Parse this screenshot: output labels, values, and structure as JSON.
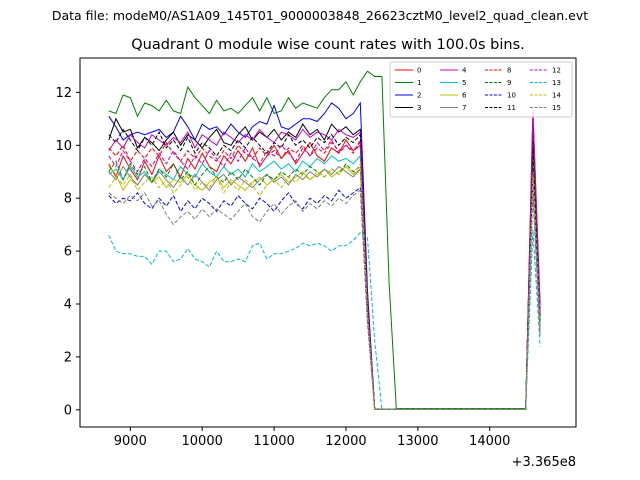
{
  "figure": {
    "suptitle": "Data file: modeM0/AS1A09_145T01_9000003848_26623cztM0_level2_quad_clean.evt",
    "title": "Quadrant 0 module wise count rates with 100.0s bins.",
    "offset_label": "+3.365e8"
  },
  "chart_data": {
    "type": "line",
    "title": "Quadrant 0 module wise count rates with 100.0s bins.",
    "xlabel": "",
    "ylabel": "",
    "x_offset": 336500000,
    "xlim": [
      8300,
      15200
    ],
    "ylim": [
      -0.65,
      13.3
    ],
    "xticks": [
      9000,
      10000,
      11000,
      12000,
      13000,
      14000
    ],
    "xtick_labels": [
      "9000",
      "10000",
      "11000",
      "12000",
      "13000",
      "14000"
    ],
    "yticks": [
      0,
      2,
      4,
      6,
      8,
      10,
      12
    ],
    "ytick_labels": [
      "0",
      "2",
      "4",
      "6",
      "8",
      "10",
      "12"
    ],
    "legend_position": "upper-right",
    "legend_columns": 4,
    "x": [
      8700,
      8800,
      8900,
      9000,
      9100,
      9200,
      9300,
      9400,
      9500,
      9600,
      9700,
      9800,
      9900,
      10000,
      10100,
      10200,
      10300,
      10400,
      10500,
      10600,
      10700,
      10800,
      10900,
      11000,
      11100,
      11200,
      11300,
      11400,
      11500,
      11600,
      11700,
      11800,
      11900,
      12000,
      12100,
      12200,
      12300,
      12400,
      12500,
      12600,
      12700,
      12800,
      12900,
      13000,
      13100,
      13200,
      13300,
      13400,
      13500,
      13600,
      13700,
      13800,
      13900,
      14000,
      14100,
      14200,
      14300,
      14400,
      14500,
      14600,
      14700
    ],
    "series": [
      {
        "name": "0",
        "color": "#ff0000",
        "dash": "solid",
        "values": [
          9.3,
          8.8,
          9.6,
          9.1,
          8.7,
          9.4,
          8.9,
          9.6,
          9.0,
          9.3,
          8.8,
          9.5,
          9.1,
          9.7,
          9.2,
          9.0,
          9.6,
          9.3,
          9.8,
          9.4,
          9.9,
          9.2,
          9.6,
          10.0,
          9.5,
          9.8,
          9.3,
          9.7,
          10.1,
          9.6,
          9.4,
          9.9,
          9.7,
          10.2,
          9.8,
          10.0,
          4.0,
          0.02,
          0.02,
          0.02,
          0.02,
          0.02,
          0.02,
          0.02,
          0.02,
          0.02,
          0.02,
          0.02,
          0.02,
          0.02,
          0.02,
          0.02,
          0.02,
          0.02,
          0.02,
          0.02,
          0.02,
          0.02,
          0.02,
          10.2,
          3.5
        ]
      },
      {
        "name": "1",
        "color": "#008000",
        "dash": "solid",
        "values": [
          11.3,
          11.2,
          11.9,
          11.8,
          11.1,
          11.6,
          11.5,
          11.3,
          11.7,
          11.3,
          11.2,
          12.2,
          11.8,
          11.5,
          11.2,
          11.7,
          11.3,
          11.4,
          11.2,
          11.5,
          11.8,
          11.3,
          11.8,
          11.2,
          11.3,
          11.8,
          11.4,
          11.6,
          11.5,
          11.4,
          11.8,
          12.1,
          12.1,
          12.4,
          11.9,
          12.4,
          12.8,
          12.6,
          12.6,
          4.8,
          0.05,
          0.05,
          0.05,
          0.05,
          0.05,
          0.05,
          0.05,
          0.05,
          0.05,
          0.05,
          0.05,
          0.05,
          0.05,
          0.05,
          0.05,
          0.05,
          0.05,
          0.05,
          0.05,
          11.3,
          4.0
        ]
      },
      {
        "name": "2",
        "color": "#0000ff",
        "dash": "solid",
        "values": [
          11.1,
          10.7,
          10.2,
          10.4,
          10.5,
          10.4,
          10.5,
          10.6,
          10.3,
          10.5,
          11.1,
          10.7,
          10.2,
          10.8,
          10.6,
          10.7,
          10.4,
          10.8,
          10.5,
          10.3,
          10.7,
          10.9,
          10.8,
          11.5,
          10.7,
          10.6,
          10.8,
          11.0,
          11.0,
          10.9,
          11.2,
          11.6,
          11.4,
          11.0,
          11.2,
          11.6,
          4.5,
          0.03,
          0.03,
          0.03,
          0.03,
          0.03,
          0.03,
          0.03,
          0.03,
          0.03,
          0.03,
          0.03,
          0.03,
          0.03,
          0.03,
          0.03,
          0.03,
          0.03,
          0.03,
          0.03,
          0.03,
          0.03,
          0.03,
          10.8,
          3.8
        ]
      },
      {
        "name": "3",
        "color": "#000000",
        "dash": "solid",
        "values": [
          10.2,
          11.0,
          10.5,
          10.6,
          9.9,
          10.3,
          10.1,
          9.8,
          10.2,
          10.5,
          10.0,
          10.4,
          10.2,
          9.9,
          10.3,
          10.6,
          10.1,
          10.0,
          10.4,
          10.7,
          10.2,
          10.5,
          10.3,
          10.6,
          10.2,
          10.5,
          10.3,
          10.8,
          10.4,
          10.6,
          10.2,
          10.8,
          10.5,
          10.7,
          10.4,
          10.6,
          4.2,
          0.02,
          0.02,
          0.02,
          0.02,
          0.02,
          0.02,
          0.02,
          0.02,
          0.02,
          0.02,
          0.02,
          0.02,
          0.02,
          0.02,
          0.02,
          0.02,
          0.02,
          0.02,
          0.02,
          0.02,
          0.02,
          0.02,
          10.6,
          3.6
        ]
      },
      {
        "name": "4",
        "color": "#bf00bf",
        "dash": "solid",
        "values": [
          9.8,
          10.2,
          9.9,
          10.4,
          10.1,
          9.9,
          10.4,
          10.2,
          10.0,
          10.3,
          10.1,
          10.5,
          9.9,
          10.4,
          10.2,
          10.0,
          10.5,
          10.3,
          10.1,
          10.4,
          10.2,
          10.6,
          10.3,
          10.1,
          10.5,
          10.4,
          10.2,
          10.6,
          10.3,
          10.5,
          10.4,
          10.2,
          10.6,
          10.4,
          10.3,
          10.5,
          4.1,
          0.02,
          0.02,
          0.02,
          0.02,
          0.02,
          0.02,
          0.02,
          0.02,
          0.02,
          0.02,
          0.02,
          0.02,
          0.02,
          0.02,
          0.02,
          0.02,
          0.02,
          0.02,
          0.02,
          0.02,
          0.02,
          0.02,
          11.3,
          3.9
        ]
      },
      {
        "name": "5",
        "color": "#00bfbf",
        "dash": "solid",
        "values": [
          8.9,
          9.1,
          8.7,
          9.2,
          8.8,
          9.0,
          8.6,
          9.1,
          8.9,
          8.7,
          9.2,
          8.9,
          8.8,
          9.3,
          9.0,
          8.8,
          9.2,
          8.9,
          9.1,
          8.8,
          9.3,
          9.0,
          9.2,
          9.4,
          9.1,
          9.3,
          9.0,
          9.4,
          9.2,
          9.5,
          9.3,
          9.6,
          9.4,
          9.5,
          9.3,
          9.6,
          3.8,
          0.02,
          0.02,
          0.02,
          0.02,
          0.02,
          0.02,
          0.02,
          0.02,
          0.02,
          0.02,
          0.02,
          0.02,
          0.02,
          0.02,
          0.02,
          0.02,
          0.02,
          0.02,
          0.02,
          0.02,
          0.02,
          0.02,
          9.7,
          3.2
        ]
      },
      {
        "name": "6",
        "color": "#bfbf00",
        "dash": "solid",
        "values": [
          9.2,
          8.9,
          8.3,
          8.7,
          8.5,
          8.9,
          8.6,
          8.8,
          8.4,
          8.7,
          8.6,
          8.9,
          8.5,
          8.3,
          8.6,
          8.8,
          8.4,
          8.7,
          8.5,
          8.3,
          8.6,
          8.8,
          8.5,
          8.7,
          8.9,
          8.6,
          8.8,
          9.0,
          8.7,
          8.9,
          9.1,
          8.8,
          9.0,
          9.2,
          8.9,
          9.1,
          3.7,
          0.02,
          0.02,
          0.02,
          0.02,
          0.02,
          0.02,
          0.02,
          0.02,
          0.02,
          0.02,
          0.02,
          0.02,
          0.02,
          0.02,
          0.02,
          0.02,
          0.02,
          0.02,
          0.02,
          0.02,
          0.02,
          0.02,
          9.4,
          3.0
        ]
      },
      {
        "name": "7",
        "color": "#808080",
        "dash": "solid",
        "values": [
          9.0,
          8.7,
          9.2,
          8.8,
          8.5,
          8.9,
          8.6,
          9.0,
          8.7,
          8.4,
          8.8,
          8.5,
          8.9,
          8.6,
          8.3,
          8.7,
          8.9,
          8.5,
          8.8,
          8.6,
          8.4,
          8.7,
          8.9,
          8.6,
          8.8,
          8.5,
          8.9,
          8.7,
          9.0,
          8.8,
          9.1,
          8.9,
          9.2,
          9.0,
          8.8,
          9.1,
          3.6,
          0.02,
          0.02,
          0.02,
          0.02,
          0.02,
          0.02,
          0.02,
          0.02,
          0.02,
          0.02,
          0.02,
          0.02,
          0.02,
          0.02,
          0.02,
          0.02,
          0.02,
          0.02,
          0.02,
          0.02,
          0.02,
          0.02,
          9.2,
          3.1
        ]
      },
      {
        "name": "8",
        "color": "#ff0000",
        "dash": "dashed",
        "values": [
          9.9,
          9.6,
          10.0,
          9.4,
          9.8,
          9.5,
          9.9,
          9.6,
          10.1,
          9.7,
          9.4,
          9.8,
          9.5,
          9.9,
          9.6,
          9.4,
          9.8,
          9.5,
          10.0,
          9.7,
          9.5,
          9.9,
          9.6,
          9.8,
          9.5,
          9.9,
          9.7,
          10.0,
          9.6,
          9.9,
          9.7,
          10.1,
          9.8,
          10.0,
          9.7,
          10.2,
          4.1,
          0.02,
          0.02,
          0.02,
          0.02,
          0.02,
          0.02,
          0.02,
          0.02,
          0.02,
          0.02,
          0.02,
          0.02,
          0.02,
          0.02,
          0.02,
          0.02,
          0.02,
          0.02,
          0.02,
          0.02,
          0.02,
          0.02,
          9.8,
          3.4
        ]
      },
      {
        "name": "9",
        "color": "#008000",
        "dash": "dashed",
        "values": [
          9.0,
          9.4,
          8.7,
          9.3,
          8.9,
          9.2,
          8.6,
          9.1,
          8.8,
          9.3,
          8.7,
          9.0,
          8.5,
          8.9,
          9.2,
          8.8,
          8.6,
          9.0,
          8.7,
          9.1,
          8.8,
          8.5,
          8.9,
          8.7,
          9.0,
          8.8,
          9.1,
          8.9,
          9.2,
          9.0,
          8.8,
          9.1,
          8.9,
          9.3,
          9.0,
          9.2,
          3.7,
          0.02,
          0.02,
          0.02,
          0.02,
          0.02,
          0.02,
          0.02,
          0.02,
          0.02,
          0.02,
          0.02,
          0.02,
          0.02,
          0.02,
          0.02,
          0.02,
          0.02,
          0.02,
          0.02,
          0.02,
          0.02,
          0.02,
          9.5,
          3.3
        ]
      },
      {
        "name": "10",
        "color": "#0000ff",
        "dash": "dashed",
        "values": [
          8.1,
          7.8,
          8.0,
          7.9,
          8.2,
          7.8,
          7.6,
          8.0,
          7.7,
          8.1,
          7.5,
          7.9,
          7.6,
          8.0,
          7.8,
          7.5,
          7.9,
          7.7,
          8.1,
          7.8,
          7.6,
          8.0,
          7.8,
          7.5,
          7.9,
          8.2,
          7.8,
          7.6,
          8.0,
          7.8,
          8.1,
          7.9,
          8.3,
          8.0,
          8.2,
          8.4,
          3.3,
          0.02,
          0.02,
          0.02,
          0.02,
          0.02,
          0.02,
          0.02,
          0.02,
          0.02,
          0.02,
          0.02,
          0.02,
          0.02,
          0.02,
          0.02,
          0.02,
          0.02,
          0.02,
          0.02,
          0.02,
          0.02,
          0.02,
          8.6,
          2.9
        ]
      },
      {
        "name": "11",
        "color": "#000000",
        "dash": "dashed",
        "values": [
          10.4,
          10.1,
          10.6,
          10.2,
          9.8,
          10.3,
          10.0,
          10.5,
          9.9,
          10.2,
          9.8,
          10.3,
          9.7,
          10.1,
          9.9,
          9.6,
          10.0,
          9.8,
          10.2,
          9.9,
          10.3,
          10.0,
          9.7,
          10.1,
          9.9,
          10.4,
          10.0,
          10.2,
          9.9,
          10.3,
          10.1,
          10.4,
          10.0,
          10.3,
          10.1,
          10.4,
          4.0,
          0.02,
          0.02,
          0.02,
          0.02,
          0.02,
          0.02,
          0.02,
          0.02,
          0.02,
          0.02,
          0.02,
          0.02,
          0.02,
          0.02,
          0.02,
          0.02,
          0.02,
          0.02,
          0.02,
          0.02,
          0.02,
          0.02,
          10.1,
          3.5
        ]
      },
      {
        "name": "12",
        "color": "#bf00bf",
        "dash": "dashed",
        "values": [
          9.6,
          9.2,
          9.8,
          9.4,
          9.0,
          9.5,
          9.2,
          9.7,
          9.3,
          9.8,
          9.4,
          9.1,
          9.6,
          9.3,
          9.8,
          9.5,
          9.2,
          9.7,
          9.4,
          9.9,
          9.5,
          9.3,
          9.8,
          9.6,
          10.0,
          9.7,
          9.4,
          9.9,
          9.6,
          10.1,
          9.8,
          10.2,
          9.7,
          10.0,
          9.8,
          10.1,
          4.0,
          0.02,
          0.02,
          0.02,
          0.02,
          0.02,
          0.02,
          0.02,
          0.02,
          0.02,
          0.02,
          0.02,
          0.02,
          0.02,
          0.02,
          0.02,
          0.02,
          0.02,
          0.02,
          0.02,
          0.02,
          0.02,
          0.02,
          10.9,
          3.6
        ]
      },
      {
        "name": "13",
        "color": "#00bfbf",
        "dash": "dashed",
        "values": [
          6.6,
          6.0,
          5.9,
          5.9,
          5.8,
          5.8,
          5.5,
          6.0,
          6.0,
          5.6,
          5.7,
          6.1,
          5.7,
          5.6,
          5.4,
          6.0,
          5.6,
          5.6,
          5.7,
          5.6,
          6.2,
          6.3,
          5.7,
          5.9,
          5.9,
          6.0,
          6.1,
          6.3,
          6.2,
          6.3,
          6.2,
          6.0,
          6.2,
          6.2,
          6.4,
          6.7,
          6.5,
          2.6,
          0.02,
          0.02,
          0.02,
          0.02,
          0.02,
          0.02,
          0.02,
          0.02,
          0.02,
          0.02,
          0.02,
          0.02,
          0.02,
          0.02,
          0.02,
          0.02,
          0.02,
          0.02,
          0.02,
          0.02,
          0.02,
          6.8,
          2.4
        ]
      },
      {
        "name": "14",
        "color": "#bfbf00",
        "dash": "dashed",
        "values": [
          8.4,
          8.8,
          8.5,
          8.9,
          8.3,
          8.6,
          8.8,
          8.4,
          8.7,
          8.2,
          8.5,
          8.8,
          8.3,
          8.6,
          8.4,
          8.8,
          8.2,
          8.6,
          8.3,
          8.7,
          8.5,
          8.1,
          8.5,
          8.7,
          8.4,
          8.8,
          8.6,
          8.9,
          8.7,
          9.0,
          8.8,
          9.1,
          8.9,
          9.2,
          8.9,
          9.3,
          3.6,
          0.02,
          0.02,
          0.02,
          0.02,
          0.02,
          0.02,
          0.02,
          0.02,
          0.02,
          0.02,
          0.02,
          0.02,
          0.02,
          0.02,
          0.02,
          0.02,
          0.02,
          0.02,
          0.02,
          0.02,
          0.02,
          0.02,
          8.9,
          3.0
        ]
      },
      {
        "name": "15",
        "color": "#808080",
        "dash": "dashed",
        "values": [
          8.2,
          8.0,
          7.8,
          8.1,
          7.9,
          8.2,
          7.7,
          7.9,
          7.4,
          7.0,
          7.3,
          7.5,
          7.2,
          7.6,
          7.3,
          7.6,
          7.4,
          7.2,
          7.5,
          7.8,
          7.3,
          7.1,
          7.5,
          7.8,
          7.4,
          7.7,
          7.9,
          7.5,
          7.8,
          7.6,
          7.9,
          7.7,
          8.0,
          7.8,
          8.1,
          8.3,
          3.4,
          0.02,
          0.02,
          0.02,
          0.02,
          0.02,
          0.02,
          0.02,
          0.02,
          0.02,
          0.02,
          0.02,
          0.02,
          0.02,
          0.02,
          0.02,
          0.02,
          0.02,
          0.02,
          0.02,
          0.02,
          0.02,
          0.02,
          8.1,
          2.8
        ]
      }
    ]
  }
}
